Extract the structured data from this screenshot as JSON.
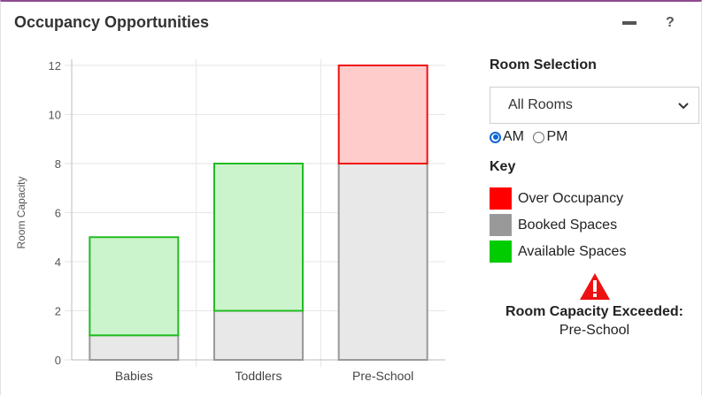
{
  "widget": {
    "title": "Occupancy Opportunities",
    "minimize_icon": "minus-icon",
    "help_icon": "?"
  },
  "chart_data": {
    "type": "bar",
    "stacked": true,
    "categories": [
      "Babies",
      "Toddlers",
      "Pre-School"
    ],
    "ylabel": "Room Capacity",
    "ylim": [
      0,
      12
    ],
    "yticks": [
      0,
      2,
      4,
      6,
      8,
      10,
      12
    ],
    "grid": true,
    "series": [
      {
        "name": "Booked Spaces",
        "values": [
          1,
          2,
          8
        ],
        "fill": "#e8e8e8",
        "stroke": "#999999"
      },
      {
        "name": "Available Spaces",
        "values": [
          4,
          6,
          0
        ],
        "fill": "#ccf4cc",
        "stroke": "#22bb22"
      },
      {
        "name": "Over Occupancy",
        "values": [
          0,
          0,
          4
        ],
        "fill": "#ffcccc",
        "stroke": "#ee1111"
      }
    ]
  },
  "panel": {
    "room_selection_heading": "Room Selection",
    "room_select_value": "All Rooms",
    "radio": {
      "am_label": "AM",
      "pm_label": "PM",
      "selected": "AM"
    },
    "key_heading": "Key",
    "key_items": [
      {
        "label": "Over Occupancy",
        "color": "#ff0000"
      },
      {
        "label": "Booked Spaces",
        "color": "#999999"
      },
      {
        "label": "Available Spaces",
        "color": "#00cc00"
      }
    ],
    "warning": {
      "icon": "warning-triangle-icon",
      "color": "#ee1111",
      "title": "Room Capacity Exceeded:",
      "room": "Pre-School"
    }
  }
}
